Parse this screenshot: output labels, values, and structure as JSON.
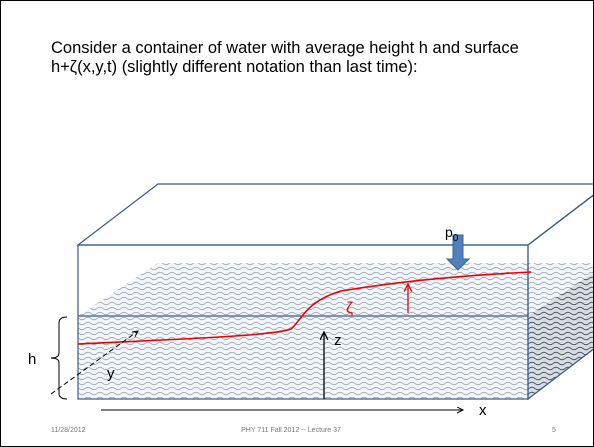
{
  "body": {
    "text": "Consider a container of water with average height h and surface h+ζ(x,y,t)  (slightly different notation than last time):"
  },
  "figure": {
    "pressure_label": "p",
    "pressure_subscript": "0",
    "zeta_label": "ζ",
    "z_label": "z",
    "h_label": "h",
    "y_label": "y",
    "x_label": "x"
  },
  "footer": {
    "date": "11/28/2012",
    "center": "PHY 711  Fall 2012 -- Lecture 37",
    "page": "5"
  }
}
